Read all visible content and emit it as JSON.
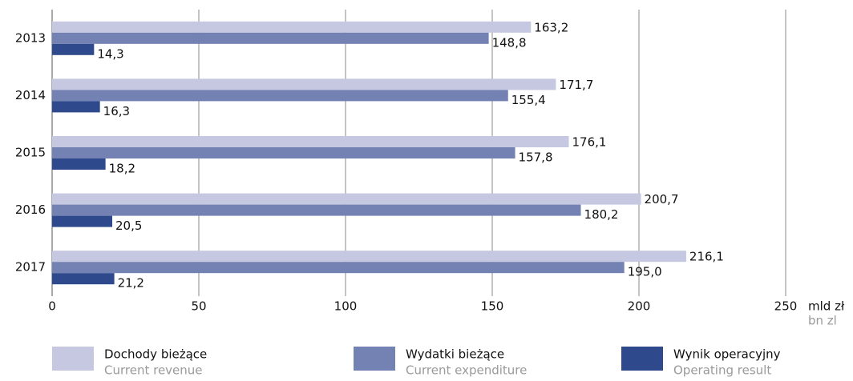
{
  "chart_data": {
    "type": "hbar",
    "categories": [
      "2013",
      "2014",
      "2015",
      "2016",
      "2017"
    ],
    "series": [
      {
        "name": "Dochody bieżące",
        "subtitle": "Current revenue",
        "color": "#c5c8e0",
        "values": [
          163.2,
          171.7,
          176.1,
          200.7,
          216.1
        ],
        "value_labels": [
          "163,2",
          "171,7",
          "176,1",
          "200,7",
          "216,1"
        ]
      },
      {
        "name": "Wydatki bieżące",
        "subtitle": "Current expenditure",
        "color": "#7482b3",
        "values": [
          148.8,
          155.4,
          157.8,
          180.2,
          195.0
        ],
        "value_labels": [
          "148,8",
          "155,4",
          "157,8",
          "180,2",
          "195,0"
        ]
      },
      {
        "name": "Wynik operacyjny",
        "subtitle": "Operating result",
        "color": "#2e4a8c",
        "values": [
          14.3,
          16.3,
          18.2,
          20.5,
          21.2
        ],
        "value_labels": [
          "14,3",
          "16,3",
          "18,2",
          "20,5",
          "21,2"
        ]
      }
    ],
    "xlim": [
      0,
      250
    ],
    "xticks": [
      0,
      50,
      100,
      150,
      200,
      250
    ],
    "grid": true,
    "xlabel": "mld zł",
    "xlabel_en": "bn zl"
  }
}
